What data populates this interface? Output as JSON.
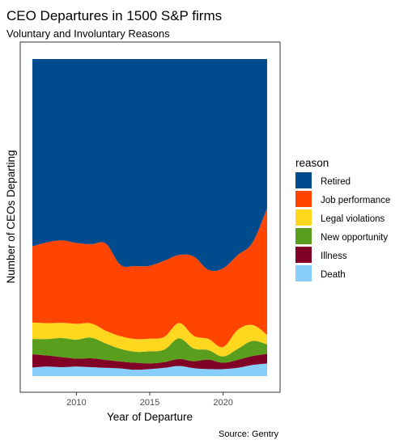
{
  "colors": {
    "Retired": "#004B8D",
    "Job performance": "#FF4500",
    "Legal violations": "#FFD71F",
    "New opportunity": "#5A9E1E",
    "Illness": "#800026",
    "Death": "#87CEFA",
    "panel_border": "#333333",
    "tick_text": "#4d4d4d",
    "text": "#000000"
  },
  "chart_data": {
    "type": "area",
    "title": "CEO Departures in 1500 S&P firms",
    "subtitle": "Voluntary and Involuntary Reasons",
    "xlabel": "Year of Departure",
    "ylabel": "Number of CEOs Departing",
    "caption": "Source: Gentry",
    "legend_title": "reason",
    "legend_position": "right",
    "stacked": true,
    "position": "fill",
    "grid": false,
    "xlim": [
      2006.5,
      2023.5
    ],
    "x_ticks": [
      2010,
      2015,
      2020
    ],
    "x": [
      2007,
      2008,
      2009,
      2010,
      2011,
      2012,
      2013,
      2014,
      2015,
      2016,
      2017,
      2018,
      2019,
      2020,
      2021,
      2022,
      2023
    ],
    "series": [
      {
        "name": "Death",
        "values": [
          0.027,
          0.03,
          0.028,
          0.03,
          0.028,
          0.026,
          0.024,
          0.02,
          0.022,
          0.026,
          0.032,
          0.025,
          0.022,
          0.022,
          0.026,
          0.035,
          0.04
        ]
      },
      {
        "name": "Illness",
        "values": [
          0.042,
          0.035,
          0.032,
          0.025,
          0.028,
          0.025,
          0.022,
          0.022,
          0.018,
          0.018,
          0.022,
          0.022,
          0.03,
          0.02,
          0.025,
          0.028,
          0.03
        ]
      },
      {
        "name": "New opportunity",
        "values": [
          0.048,
          0.052,
          0.06,
          0.06,
          0.065,
          0.052,
          0.04,
          0.035,
          0.038,
          0.04,
          0.065,
          0.04,
          0.03,
          0.02,
          0.035,
          0.048,
          0.03
        ]
      },
      {
        "name": "Legal violations",
        "values": [
          0.052,
          0.05,
          0.048,
          0.05,
          0.045,
          0.04,
          0.04,
          0.04,
          0.04,
          0.04,
          0.048,
          0.04,
          0.035,
          0.03,
          0.06,
          0.05,
          0.03
        ]
      },
      {
        "name": "Job performance",
        "values": [
          0.24,
          0.255,
          0.26,
          0.255,
          0.25,
          0.275,
          0.225,
          0.23,
          0.23,
          0.24,
          0.215,
          0.25,
          0.218,
          0.248,
          0.236,
          0.26,
          0.4
        ]
      },
      {
        "name": "Retired",
        "values": [
          0.591,
          0.578,
          0.572,
          0.58,
          0.584,
          0.582,
          0.649,
          0.653,
          0.652,
          0.636,
          0.618,
          0.623,
          0.665,
          0.66,
          0.618,
          0.579,
          0.47
        ]
      }
    ]
  }
}
